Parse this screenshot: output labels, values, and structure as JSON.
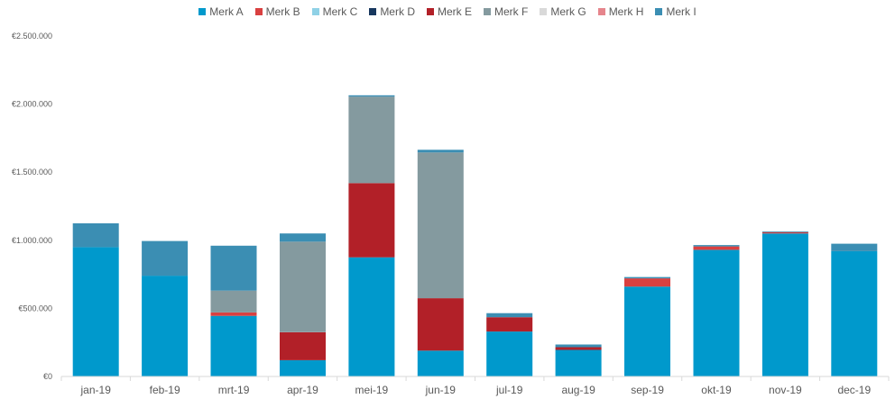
{
  "chart_data": {
    "type": "bar",
    "stacked": true,
    "categories": [
      "jan-19",
      "feb-19",
      "mrt-19",
      "apr-19",
      "mei-19",
      "jun-19",
      "jul-19",
      "aug-19",
      "sep-19",
      "okt-19",
      "nov-19",
      "dec-19"
    ],
    "y_ticks": [
      "€0",
      "€500.000",
      "€1.000.000",
      "€1.500.000",
      "€2.000.000",
      "€2.500.000"
    ],
    "ylim": [
      0,
      2500000
    ],
    "legend_position": "top",
    "gridlines": false,
    "series": [
      {
        "name": "Merk A",
        "color": "#0099CC",
        "values": [
          950000,
          740000,
          445000,
          120000,
          875000,
          190000,
          330000,
          195000,
          660000,
          930000,
          1050000,
          920000
        ]
      },
      {
        "name": "Merk B",
        "color": "#D94040",
        "values": [
          0,
          0,
          25000,
          0,
          0,
          0,
          0,
          0,
          60000,
          25000,
          10000,
          0
        ]
      },
      {
        "name": "Merk C",
        "color": "#8FD1E6",
        "values": [
          0,
          0,
          0,
          0,
          0,
          0,
          0,
          0,
          0,
          0,
          0,
          0
        ]
      },
      {
        "name": "Merk D",
        "color": "#17375E",
        "values": [
          0,
          0,
          0,
          0,
          0,
          0,
          0,
          0,
          0,
          0,
          0,
          0
        ]
      },
      {
        "name": "Merk E",
        "color": "#B22028",
        "values": [
          0,
          0,
          0,
          205000,
          545000,
          385000,
          105000,
          20000,
          0,
          0,
          0,
          0
        ]
      },
      {
        "name": "Merk F",
        "color": "#849A9F",
        "values": [
          0,
          0,
          160000,
          665000,
          635000,
          1070000,
          0,
          0,
          0,
          0,
          0,
          0
        ]
      },
      {
        "name": "Merk G",
        "color": "#D9D9D9",
        "values": [
          0,
          0,
          0,
          0,
          0,
          0,
          0,
          0,
          0,
          0,
          0,
          0
        ]
      },
      {
        "name": "Merk H",
        "color": "#E6858C",
        "values": [
          0,
          0,
          0,
          0,
          0,
          0,
          0,
          0,
          0,
          0,
          0,
          0
        ]
      },
      {
        "name": "Merk I",
        "color": "#3B8EB3",
        "values": [
          175000,
          255000,
          330000,
          60000,
          10000,
          20000,
          30000,
          20000,
          10000,
          10000,
          5000,
          55000
        ]
      }
    ]
  }
}
